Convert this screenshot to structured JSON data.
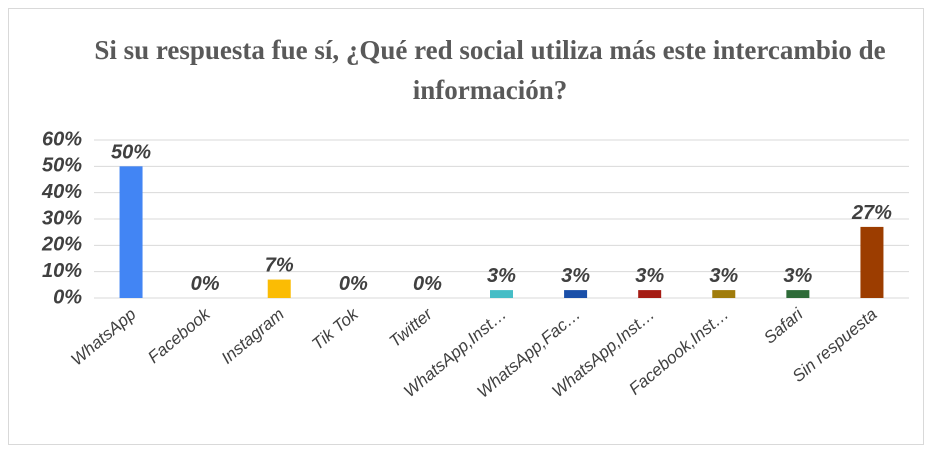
{
  "chart_data": {
    "type": "bar",
    "title": "Si su respuesta fue sí, ¿Qué red social utiliza más este intercambio de información?",
    "categories": [
      "WhatsApp",
      "Facebook",
      "Instagram",
      "Tik Tok",
      "Twitter",
      "WhatsApp,Inst…",
      "WhatsApp,Fac…",
      "WhatsApp,Inst…",
      "Facebook,Inst…",
      "Safari",
      "Sin respuesta"
    ],
    "values": [
      50,
      0,
      7,
      0,
      0,
      3,
      3,
      3,
      3,
      3,
      27
    ],
    "value_labels": [
      "50%",
      "0%",
      "7%",
      "0%",
      "0%",
      "3%",
      "3%",
      "3%",
      "3%",
      "3%",
      "27%"
    ],
    "colors": [
      "#4285f4",
      "#ea4335",
      "#fbbc04",
      "#34a853",
      "#ff6d01",
      "#46bdc6",
      "#1a4fa8",
      "#a51c14",
      "#a07c0c",
      "#2e6b38",
      "#9c3d00"
    ],
    "ylim": [
      0,
      60
    ],
    "yticks": [
      {
        "value": 0,
        "label": "0%"
      },
      {
        "value": 10,
        "label": "10%"
      },
      {
        "value": 20,
        "label": "20%"
      },
      {
        "value": 30,
        "label": "30%"
      },
      {
        "value": 40,
        "label": "40%"
      },
      {
        "value": 50,
        "label": "50%"
      },
      {
        "value": 60,
        "label": "60%"
      }
    ],
    "grid": true
  }
}
